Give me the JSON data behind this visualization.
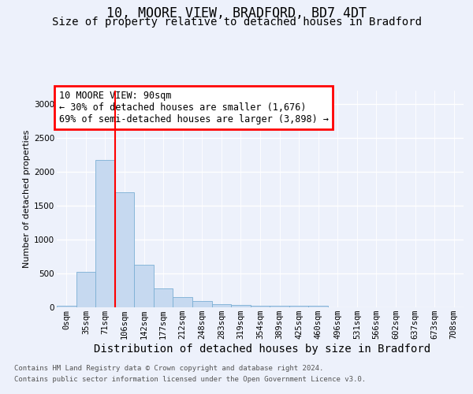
{
  "title": "10, MOORE VIEW, BRADFORD, BD7 4DT",
  "subtitle": "Size of property relative to detached houses in Bradford",
  "xlabel": "Distribution of detached houses by size in Bradford",
  "ylabel": "Number of detached properties",
  "bar_color": "#c6d9f0",
  "bar_edge_color": "#7bafd4",
  "categories": [
    "0sqm",
    "35sqm",
    "71sqm",
    "106sqm",
    "142sqm",
    "177sqm",
    "212sqm",
    "248sqm",
    "283sqm",
    "319sqm",
    "354sqm",
    "389sqm",
    "425sqm",
    "460sqm",
    "496sqm",
    "531sqm",
    "566sqm",
    "602sqm",
    "637sqm",
    "673sqm",
    "708sqm"
  ],
  "values": [
    25,
    520,
    2180,
    1700,
    630,
    280,
    150,
    90,
    50,
    35,
    25,
    20,
    20,
    18,
    5,
    2,
    1,
    0,
    0,
    0,
    0
  ],
  "ylim": [
    0,
    3200
  ],
  "yticks": [
    0,
    500,
    1000,
    1500,
    2000,
    2500,
    3000
  ],
  "red_line_x": 2.5,
  "annotation_text": "10 MOORE VIEW: 90sqm\n← 30% of detached houses are smaller (1,676)\n69% of semi-detached houses are larger (3,898) →",
  "footnote_line1": "Contains HM Land Registry data © Crown copyright and database right 2024.",
  "footnote_line2": "Contains public sector information licensed under the Open Government Licence v3.0.",
  "background_color": "#edf1fb",
  "grid_color": "#ffffff",
  "title_fontsize": 12,
  "subtitle_fontsize": 10,
  "xlabel_fontsize": 10,
  "ylabel_fontsize": 8,
  "tick_fontsize": 7.5,
  "annotation_fontsize": 8.5,
  "footnote_fontsize": 6.5
}
